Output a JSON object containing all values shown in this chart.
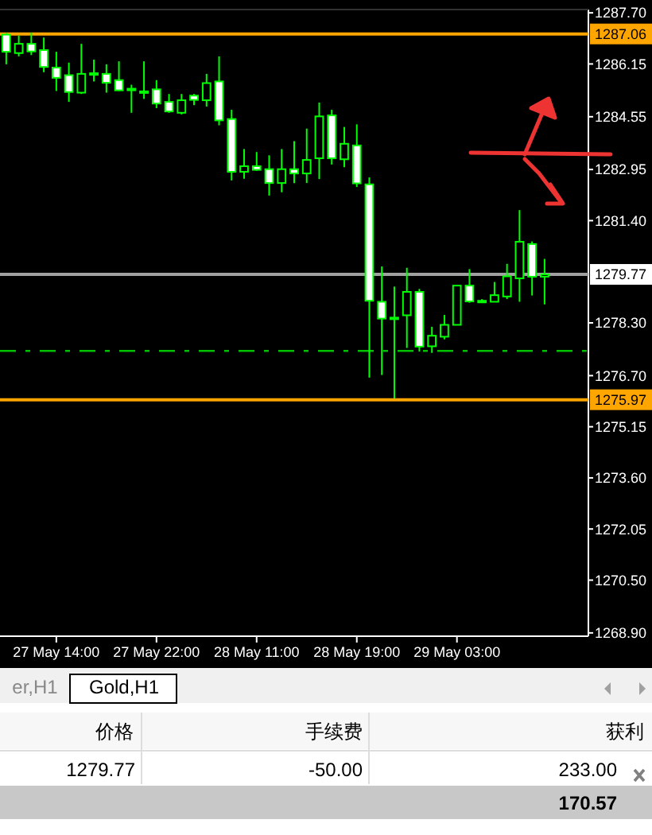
{
  "chart_data": {
    "type": "candlestick",
    "color": "#00ff00",
    "categories": [
      null,
      null,
      null,
      null,
      "27 May 14:00",
      null,
      null,
      null,
      null,
      null,
      null,
      null,
      "27 May 22:00",
      null,
      null,
      null,
      null,
      null,
      null,
      null,
      "28 May 11:00",
      null,
      null,
      null,
      null,
      null,
      null,
      null,
      "28 May 19:00",
      null,
      null,
      null,
      null,
      null,
      null,
      null,
      "29 May 03:00",
      null,
      null,
      null,
      null,
      null,
      null,
      null
    ],
    "ohlc": [
      [
        1287.04,
        1287.09,
        1286.14,
        1286.52
      ],
      [
        1286.48,
        1287.01,
        1286.38,
        1286.76
      ],
      [
        1286.76,
        1287.1,
        1286.42,
        1286.53
      ],
      [
        1286.57,
        1286.95,
        1285.9,
        1286.06
      ],
      [
        1286.04,
        1286.52,
        1285.33,
        1285.73
      ],
      [
        1285.81,
        1286.19,
        1285.0,
        1285.3
      ],
      [
        1285.28,
        1286.76,
        1285.24,
        1285.85
      ],
      [
        1285.87,
        1286.28,
        1285.62,
        1285.85
      ],
      [
        1285.85,
        1286.14,
        1285.28,
        1285.58
      ],
      [
        1285.66,
        1286.23,
        1285.33,
        1285.35
      ],
      [
        1285.4,
        1285.52,
        1284.67,
        1285.39
      ],
      [
        1285.32,
        1286.23,
        1285.09,
        1285.3
      ],
      [
        1285.38,
        1285.66,
        1284.81,
        1284.95
      ],
      [
        1285.0,
        1285.24,
        1284.67,
        1284.71
      ],
      [
        1284.67,
        1285.24,
        1284.62,
        1285.05
      ],
      [
        1285.19,
        1285.24,
        1284.9,
        1285.06
      ],
      [
        1285.05,
        1285.85,
        1284.86,
        1285.57
      ],
      [
        1285.62,
        1286.38,
        1284.29,
        1284.44
      ],
      [
        1284.48,
        1284.76,
        1282.62,
        1282.88
      ],
      [
        1282.88,
        1283.57,
        1282.67,
        1283.05
      ],
      [
        1283.05,
        1283.48,
        1282.91,
        1282.94
      ],
      [
        1282.96,
        1283.38,
        1282.16,
        1282.54
      ],
      [
        1282.54,
        1283.57,
        1282.26,
        1282.96
      ],
      [
        1282.96,
        1283.81,
        1282.54,
        1282.83
      ],
      [
        1282.83,
        1284.19,
        1282.54,
        1283.24
      ],
      [
        1283.29,
        1284.98,
        1282.66,
        1284.56
      ],
      [
        1284.59,
        1284.76,
        1283.1,
        1283.29
      ],
      [
        1283.26,
        1284.24,
        1283.02,
        1283.73
      ],
      [
        1283.68,
        1284.32,
        1282.42,
        1282.53
      ],
      [
        1282.5,
        1282.71,
        1276.64,
        1278.97
      ],
      [
        1278.94,
        1280.01,
        1276.72,
        1278.43
      ],
      [
        1278.46,
        1279.4,
        1276.01,
        1278.45
      ],
      [
        1278.53,
        1279.97,
        1277.54,
        1279.24
      ],
      [
        1279.24,
        1279.33,
        1277.43,
        1277.58
      ],
      [
        1277.59,
        1278.18,
        1277.39,
        1277.91
      ],
      [
        1277.88,
        1278.54,
        1277.8,
        1278.24
      ],
      [
        1278.24,
        1279.43,
        1278.24,
        1279.43
      ],
      [
        1279.43,
        1279.93,
        1278.91,
        1278.95
      ],
      [
        1278.97,
        1279.02,
        1278.91,
        1278.97
      ],
      [
        1278.94,
        1279.54,
        1278.94,
        1279.14
      ],
      [
        1279.1,
        1280.09,
        1279.02,
        1279.71
      ],
      [
        1279.65,
        1281.72,
        1278.94,
        1280.76
      ],
      [
        1280.69,
        1280.77,
        1279.13,
        1279.7
      ],
      [
        1279.7,
        1280.24,
        1278.86,
        1279.77
      ]
    ],
    "ylim": [
      1268.8,
      1287.8
    ],
    "yticks": [
      {
        "value": 1287.7,
        "label": "1287.70"
      },
      1286.15,
      1284.55,
      1282.95,
      {
        "value": 1281.4,
        "label": "1281.40"
      },
      {
        "value": 1278.3,
        "label": "1278.30"
      },
      {
        "value": 1276.7,
        "label": "1276.70"
      },
      1275.15,
      {
        "value": 1273.6,
        "label": "1273.60"
      },
      1272.05,
      {
        "value": 1270.5,
        "label": "1270.50"
      },
      {
        "value": 1268.9,
        "label": "1268.90"
      }
    ],
    "ref_lines": [
      {
        "axis": "y",
        "value": 1287.06,
        "label": "1287.06",
        "color": "#ffa500"
      },
      {
        "axis": "y",
        "value": 1275.97,
        "label": "1275.97",
        "color": "#ffa500"
      },
      {
        "axis": "y",
        "value": 1279.77,
        "label": "1279.77",
        "color": "#a0a0a0"
      },
      {
        "axis": "y",
        "value": 1277.45,
        "label": null,
        "color": "#00c000",
        "line_style": "dashed"
      }
    ],
    "annotations": [
      "er,H1",
      "Gold,H1",
      "价格",
      "手续费",
      "获利",
      "1279.77",
      "-50.00",
      "233.00",
      "170.57"
    ]
  }
}
